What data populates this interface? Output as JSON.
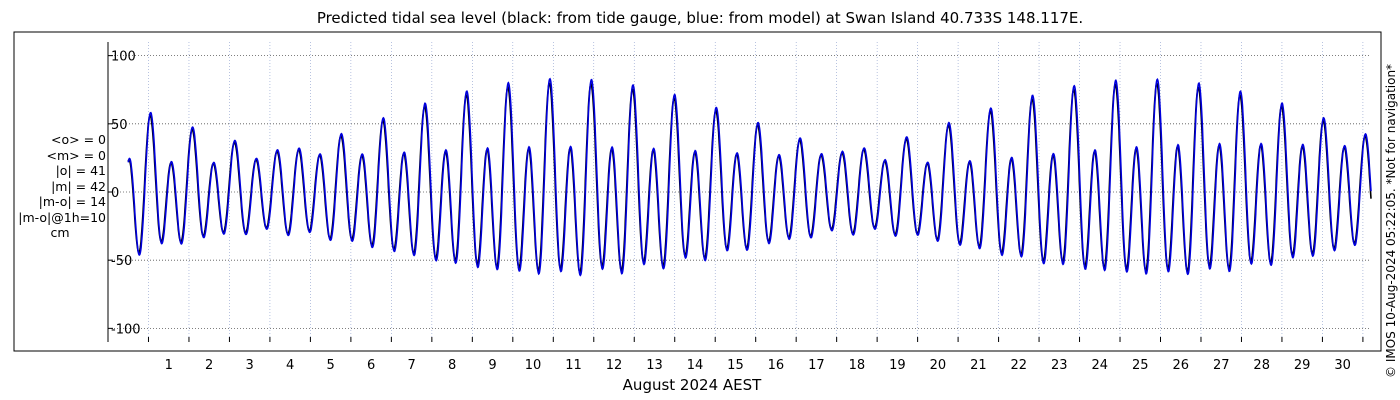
{
  "chart_data": {
    "type": "line",
    "title": "Predicted tidal sea level (black: from tide gauge, blue: from model) at Swan Island 40.733S 148.117E.",
    "xlabel": "August 2024 AEST",
    "ylabel": "",
    "ylim": [
      -110,
      110
    ],
    "xlim": [
      0,
      31.2
    ],
    "y_ticks": [
      100,
      50,
      0,
      -50,
      -100
    ],
    "x_ticks": [
      "1",
      "2",
      "3",
      "4",
      "5",
      "6",
      "7",
      "8",
      "9",
      "10",
      "11",
      "12",
      "13",
      "14",
      "15",
      "16",
      "17",
      "18",
      "19",
      "20",
      "21",
      "22",
      "23",
      "24",
      "25",
      "26",
      "27",
      "28",
      "29",
      "30"
    ],
    "grid": "dotted",
    "series": [
      {
        "name": "black: from tide gauge",
        "color": "#000000"
      },
      {
        "name": "blue: from model",
        "color": "#0000dd"
      }
    ],
    "stats": [
      "<o> = 0",
      "<m> = 0",
      "|o| = 41",
      "|m| = 42",
      "|m-o| = 14",
      "|m-o|@1h=10",
      "cm"
    ],
    "copyright": "© IMOS 10-Aug-2024 05:22:05. *Not for navigation*"
  }
}
